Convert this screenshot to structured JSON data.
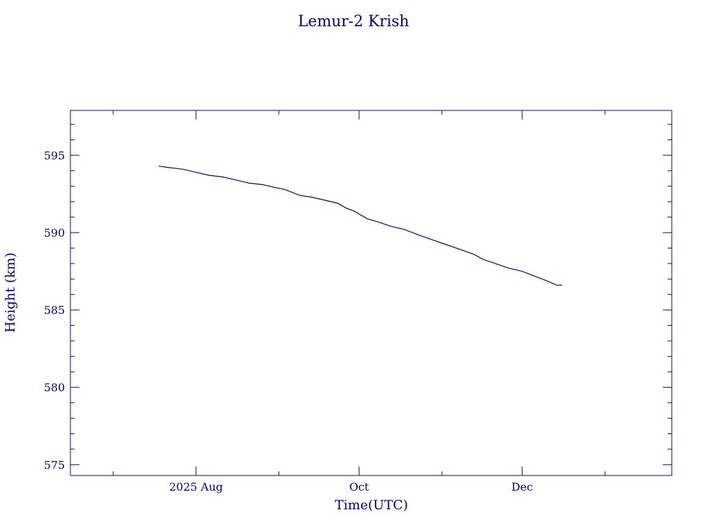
{
  "chart_data": {
    "type": "line",
    "title": "Lemur-2 Krish",
    "xlabel": "Time(UTC)",
    "ylabel": "Height (km)",
    "xlim": [
      "2025-06-15",
      "2026-01-26"
    ],
    "ylim": [
      574.3,
      597.9
    ],
    "x_major_ticks": [
      {
        "date": "2025-08-01",
        "label": "2025 Aug"
      },
      {
        "date": "2025-10-01",
        "label": "Oct"
      },
      {
        "date": "2025-12-01",
        "label": "Dec"
      }
    ],
    "x_minor_ticks": [
      "2025-07-01",
      "2025-09-01",
      "2025-11-01",
      "2026-01-01"
    ],
    "y_major_ticks": [
      575,
      580,
      585,
      590,
      595
    ],
    "y_minor_step": 1,
    "grid": false,
    "color": "#00008b",
    "series": [
      {
        "x": [
          "2025-07-18",
          "2025-07-22",
          "2025-07-27",
          "2025-08-01",
          "2025-08-06",
          "2025-08-11",
          "2025-08-16",
          "2025-08-21",
          "2025-08-26",
          "2025-08-31",
          "2025-09-03",
          "2025-09-06",
          "2025-09-09",
          "2025-09-13",
          "2025-09-18",
          "2025-09-23",
          "2025-09-26",
          "2025-09-29",
          "2025-10-01",
          "2025-10-04",
          "2025-10-08",
          "2025-10-13",
          "2025-10-18",
          "2025-10-21",
          "2025-10-24",
          "2025-10-29",
          "2025-11-03",
          "2025-11-08",
          "2025-11-13",
          "2025-11-16",
          "2025-11-21",
          "2025-11-26",
          "2025-12-01",
          "2025-12-04",
          "2025-12-07",
          "2025-12-10",
          "2025-12-14",
          "2025-12-16"
        ],
        "y": [
          594.3,
          594.2,
          594.1,
          593.9,
          593.7,
          593.6,
          593.4,
          593.2,
          593.1,
          592.9,
          592.8,
          592.6,
          592.4,
          592.3,
          592.1,
          591.9,
          591.6,
          591.4,
          591.2,
          590.9,
          590.7,
          590.4,
          590.2,
          590.0,
          589.8,
          589.5,
          589.2,
          588.9,
          588.6,
          588.3,
          588.0,
          587.7,
          587.5,
          587.3,
          587.1,
          586.9,
          586.6,
          586.6
        ]
      }
    ]
  }
}
